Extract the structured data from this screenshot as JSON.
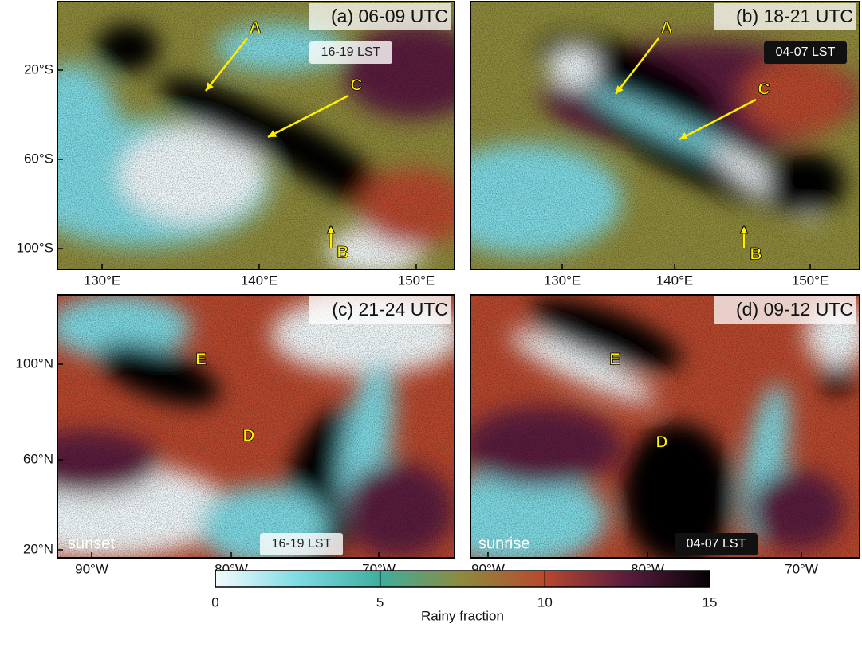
{
  "panels": [
    {
      "title": "(a) 06-09 UTC",
      "lst": "16-19 LST",
      "yticks": [
        "20°S",
        "60°S",
        "100°S"
      ],
      "xticks": [
        "130°E",
        "140°E",
        "150°E"
      ],
      "annotations": [
        "A",
        "C",
        "B"
      ]
    },
    {
      "title": "(b) 18-21 UTC",
      "lst": "04-07 LST",
      "xticks": [
        "130°E",
        "140°E",
        "150°E"
      ],
      "annotations": [
        "A",
        "C",
        "B"
      ]
    },
    {
      "title": "(c) 21-24 UTC",
      "lst": "16-19 LST",
      "note": "sunset",
      "yticks": [
        "100°N",
        "60°N",
        "20°N"
      ],
      "xticks": [
        "90°W",
        "80°W",
        "70°W"
      ],
      "annotations": [
        "E",
        "D"
      ]
    },
    {
      "title": "(d) 09-12 UTC",
      "lst": "04-07 LST",
      "note": "sunrise",
      "xticks": [
        "90°W",
        "80°W",
        "70°W"
      ],
      "annotations": [
        "E",
        "D"
      ]
    }
  ],
  "colorbar": {
    "label": "Rainy fraction",
    "range": [
      0,
      15
    ],
    "ticks": [
      0,
      5,
      10,
      15
    ],
    "colors": [
      "#f4fbfd",
      "#7fdbe4",
      "#3fae9e",
      "#8e8a3c",
      "#b8482e",
      "#5a1c3e",
      "#050205"
    ]
  }
}
